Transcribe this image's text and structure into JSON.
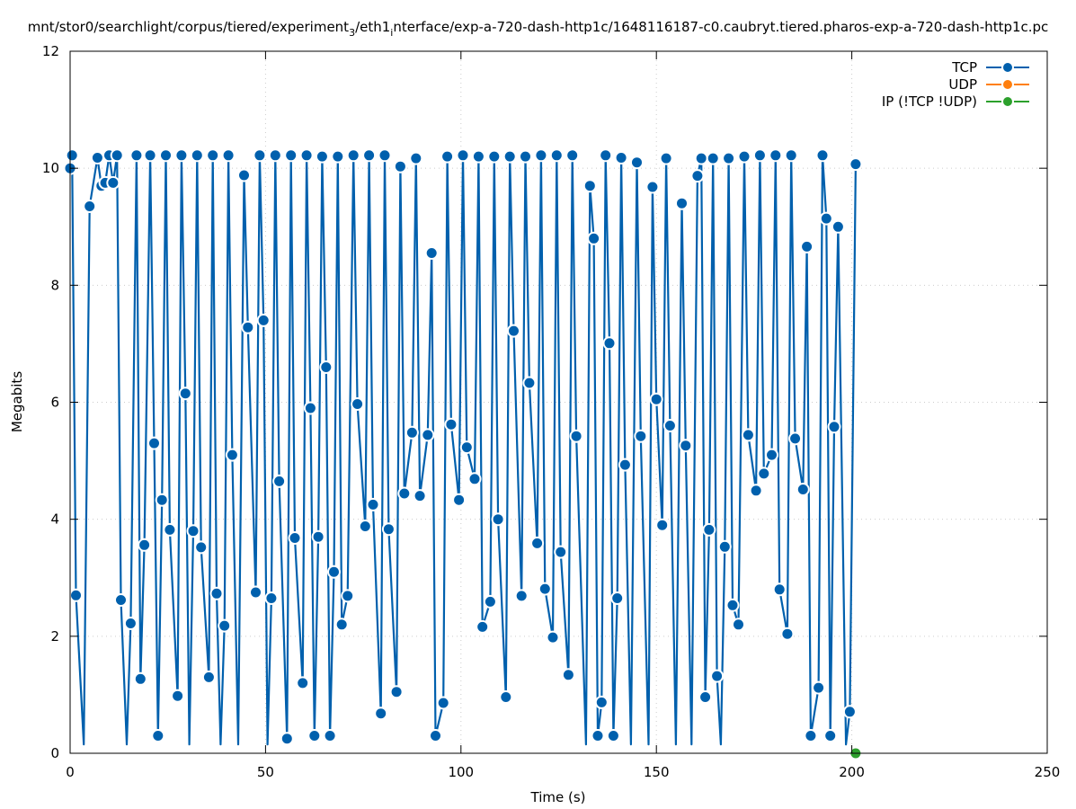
{
  "chart_data": {
    "type": "line",
    "title_parts": [
      "mnt/stor0/searchlight/corpus/tiered/experiment",
      "3",
      "/eth1",
      "i",
      "nterface/exp-a-720-dash-http1c/1648116187-c0.caubryt.tiered.pharos-exp-a-720-dash-http1c.pc"
    ],
    "xlabel": "Time (s)",
    "ylabel": "Megabits",
    "xlim": [
      0,
      250
    ],
    "ylim": [
      0,
      12
    ],
    "x_ticks": [
      0,
      50,
      100,
      150,
      200,
      250
    ],
    "y_ticks": [
      0,
      2,
      4,
      6,
      8,
      10,
      12
    ],
    "grid": true,
    "legend_position": "top-right",
    "series": [
      {
        "name": "TCP",
        "color": "#0060ad",
        "points": [
          [
            0,
            10.0
          ],
          [
            0.5,
            10.22
          ],
          [
            1.5,
            2.7
          ],
          [
            3.5,
            0.15
          ],
          [
            5,
            9.35
          ],
          [
            7,
            10.18
          ],
          [
            8,
            9.7
          ],
          [
            9,
            9.75
          ],
          [
            10,
            10.22
          ],
          [
            11,
            9.75
          ],
          [
            12,
            10.22
          ],
          [
            13,
            2.62
          ],
          [
            14.5,
            0.15
          ],
          [
            15.5,
            2.22
          ],
          [
            17,
            10.22
          ],
          [
            18,
            1.27
          ],
          [
            19,
            3.56
          ],
          [
            20.5,
            10.22
          ],
          [
            21.5,
            5.3
          ],
          [
            22.5,
            0.3
          ],
          [
            23.5,
            4.33
          ],
          [
            24.5,
            10.22
          ],
          [
            25.5,
            3.82
          ],
          [
            27.5,
            0.98
          ],
          [
            28.5,
            10.22
          ],
          [
            29.5,
            6.15
          ],
          [
            30.5,
            0.15
          ],
          [
            31.5,
            3.8
          ],
          [
            32.5,
            10.22
          ],
          [
            33.5,
            3.52
          ],
          [
            35.5,
            1.3
          ],
          [
            36.5,
            10.22
          ],
          [
            37.5,
            2.73
          ],
          [
            38.5,
            0.15
          ],
          [
            39.5,
            2.18
          ],
          [
            40.5,
            10.22
          ],
          [
            41.5,
            5.1
          ],
          [
            43,
            0.15
          ],
          [
            44.5,
            9.88
          ],
          [
            45.5,
            7.28
          ],
          [
            47.5,
            2.75
          ],
          [
            48.5,
            10.22
          ],
          [
            49.5,
            7.4
          ],
          [
            50.5,
            0.15
          ],
          [
            51.5,
            2.65
          ],
          [
            52.5,
            10.22
          ],
          [
            53.5,
            4.65
          ],
          [
            55.5,
            0.25
          ],
          [
            56.5,
            10.22
          ],
          [
            57.5,
            3.68
          ],
          [
            59.5,
            1.2
          ],
          [
            60.5,
            10.22
          ],
          [
            61.5,
            5.9
          ],
          [
            62.5,
            0.3
          ],
          [
            63.5,
            3.7
          ],
          [
            64.5,
            10.2
          ],
          [
            65.5,
            6.6
          ],
          [
            66.5,
            0.3
          ],
          [
            67.5,
            3.1
          ],
          [
            68.5,
            10.2
          ],
          [
            69.5,
            2.2
          ],
          [
            71,
            2.69
          ],
          [
            72.5,
            10.22
          ],
          [
            73.5,
            5.97
          ],
          [
            75.5,
            3.88
          ],
          [
            76.5,
            10.22
          ],
          [
            77.5,
            4.25
          ],
          [
            79.5,
            0.68
          ],
          [
            80.5,
            10.22
          ],
          [
            81.5,
            3.83
          ],
          [
            83.5,
            1.05
          ],
          [
            84.5,
            10.03
          ],
          [
            85.5,
            4.44
          ],
          [
            87.5,
            5.48
          ],
          [
            88.5,
            10.17
          ],
          [
            89.5,
            4.4
          ],
          [
            91.5,
            5.44
          ],
          [
            92.5,
            8.55
          ],
          [
            93.5,
            0.3
          ],
          [
            95.5,
            0.86
          ],
          [
            96.5,
            10.2
          ],
          [
            97.5,
            5.62
          ],
          [
            99.5,
            4.33
          ],
          [
            100.5,
            10.22
          ],
          [
            101.5,
            5.23
          ],
          [
            103.5,
            4.69
          ],
          [
            104.5,
            10.2
          ],
          [
            105.5,
            2.16
          ],
          [
            107.5,
            2.59
          ],
          [
            108.5,
            10.2
          ],
          [
            109.5,
            4.0
          ],
          [
            111.5,
            0.96
          ],
          [
            112.5,
            10.2
          ],
          [
            113.5,
            7.22
          ],
          [
            115.5,
            2.69
          ],
          [
            116.5,
            10.2
          ],
          [
            117.5,
            6.33
          ],
          [
            119.5,
            3.59
          ],
          [
            120.5,
            10.22
          ],
          [
            121.5,
            2.81
          ],
          [
            123.5,
            1.98
          ],
          [
            124.5,
            10.22
          ],
          [
            125.5,
            3.44
          ],
          [
            127.5,
            1.34
          ],
          [
            128.5,
            10.22
          ],
          [
            129.5,
            5.42
          ],
          [
            132,
            0.15
          ],
          [
            133,
            9.7
          ],
          [
            134,
            8.8
          ],
          [
            135,
            0.3
          ],
          [
            136,
            0.87
          ],
          [
            137,
            10.22
          ],
          [
            138,
            7.01
          ],
          [
            139,
            0.3
          ],
          [
            140,
            2.65
          ],
          [
            141,
            10.18
          ],
          [
            142,
            4.93
          ],
          [
            143.5,
            0.15
          ],
          [
            145,
            10.1
          ],
          [
            146,
            5.42
          ],
          [
            148,
            0.15
          ],
          [
            149,
            9.68
          ],
          [
            150,
            6.05
          ],
          [
            151.5,
            3.9
          ],
          [
            152.5,
            10.17
          ],
          [
            153.5,
            5.6
          ],
          [
            155,
            0.15
          ],
          [
            156.5,
            9.4
          ],
          [
            157.5,
            5.26
          ],
          [
            159,
            0.15
          ],
          [
            160.5,
            9.87
          ],
          [
            161.5,
            10.17
          ],
          [
            162.5,
            0.96
          ],
          [
            163.5,
            3.82
          ],
          [
            164.5,
            10.17
          ],
          [
            165.5,
            1.32
          ],
          [
            166.5,
            0.15
          ],
          [
            167.5,
            3.53
          ],
          [
            168.5,
            10.17
          ],
          [
            169.5,
            2.53
          ],
          [
            171,
            2.2
          ],
          [
            172.5,
            10.2
          ],
          [
            173.5,
            5.44
          ],
          [
            175.5,
            4.49
          ],
          [
            176.5,
            10.22
          ],
          [
            177.5,
            4.78
          ],
          [
            179.5,
            5.1
          ],
          [
            180.5,
            10.22
          ],
          [
            181.5,
            2.8
          ],
          [
            183.5,
            2.04
          ],
          [
            184.5,
            10.22
          ],
          [
            185.5,
            5.38
          ],
          [
            187.5,
            4.51
          ],
          [
            188.5,
            8.66
          ],
          [
            189.5,
            0.3
          ],
          [
            191.5,
            1.12
          ],
          [
            192.5,
            10.22
          ],
          [
            193.5,
            9.14
          ],
          [
            194.5,
            0.3
          ],
          [
            195.5,
            5.58
          ],
          [
            196.5,
            9.0
          ],
          [
            198.5,
            0.15
          ],
          [
            199.5,
            0.71
          ],
          [
            201,
            10.07
          ]
        ]
      },
      {
        "name": "UDP",
        "color": "#ff7f0e",
        "points": []
      },
      {
        "name": "IP (!TCP  !UDP)",
        "color": "#2ca02c",
        "points": [
          [
            201,
            0.0
          ]
        ]
      }
    ]
  }
}
